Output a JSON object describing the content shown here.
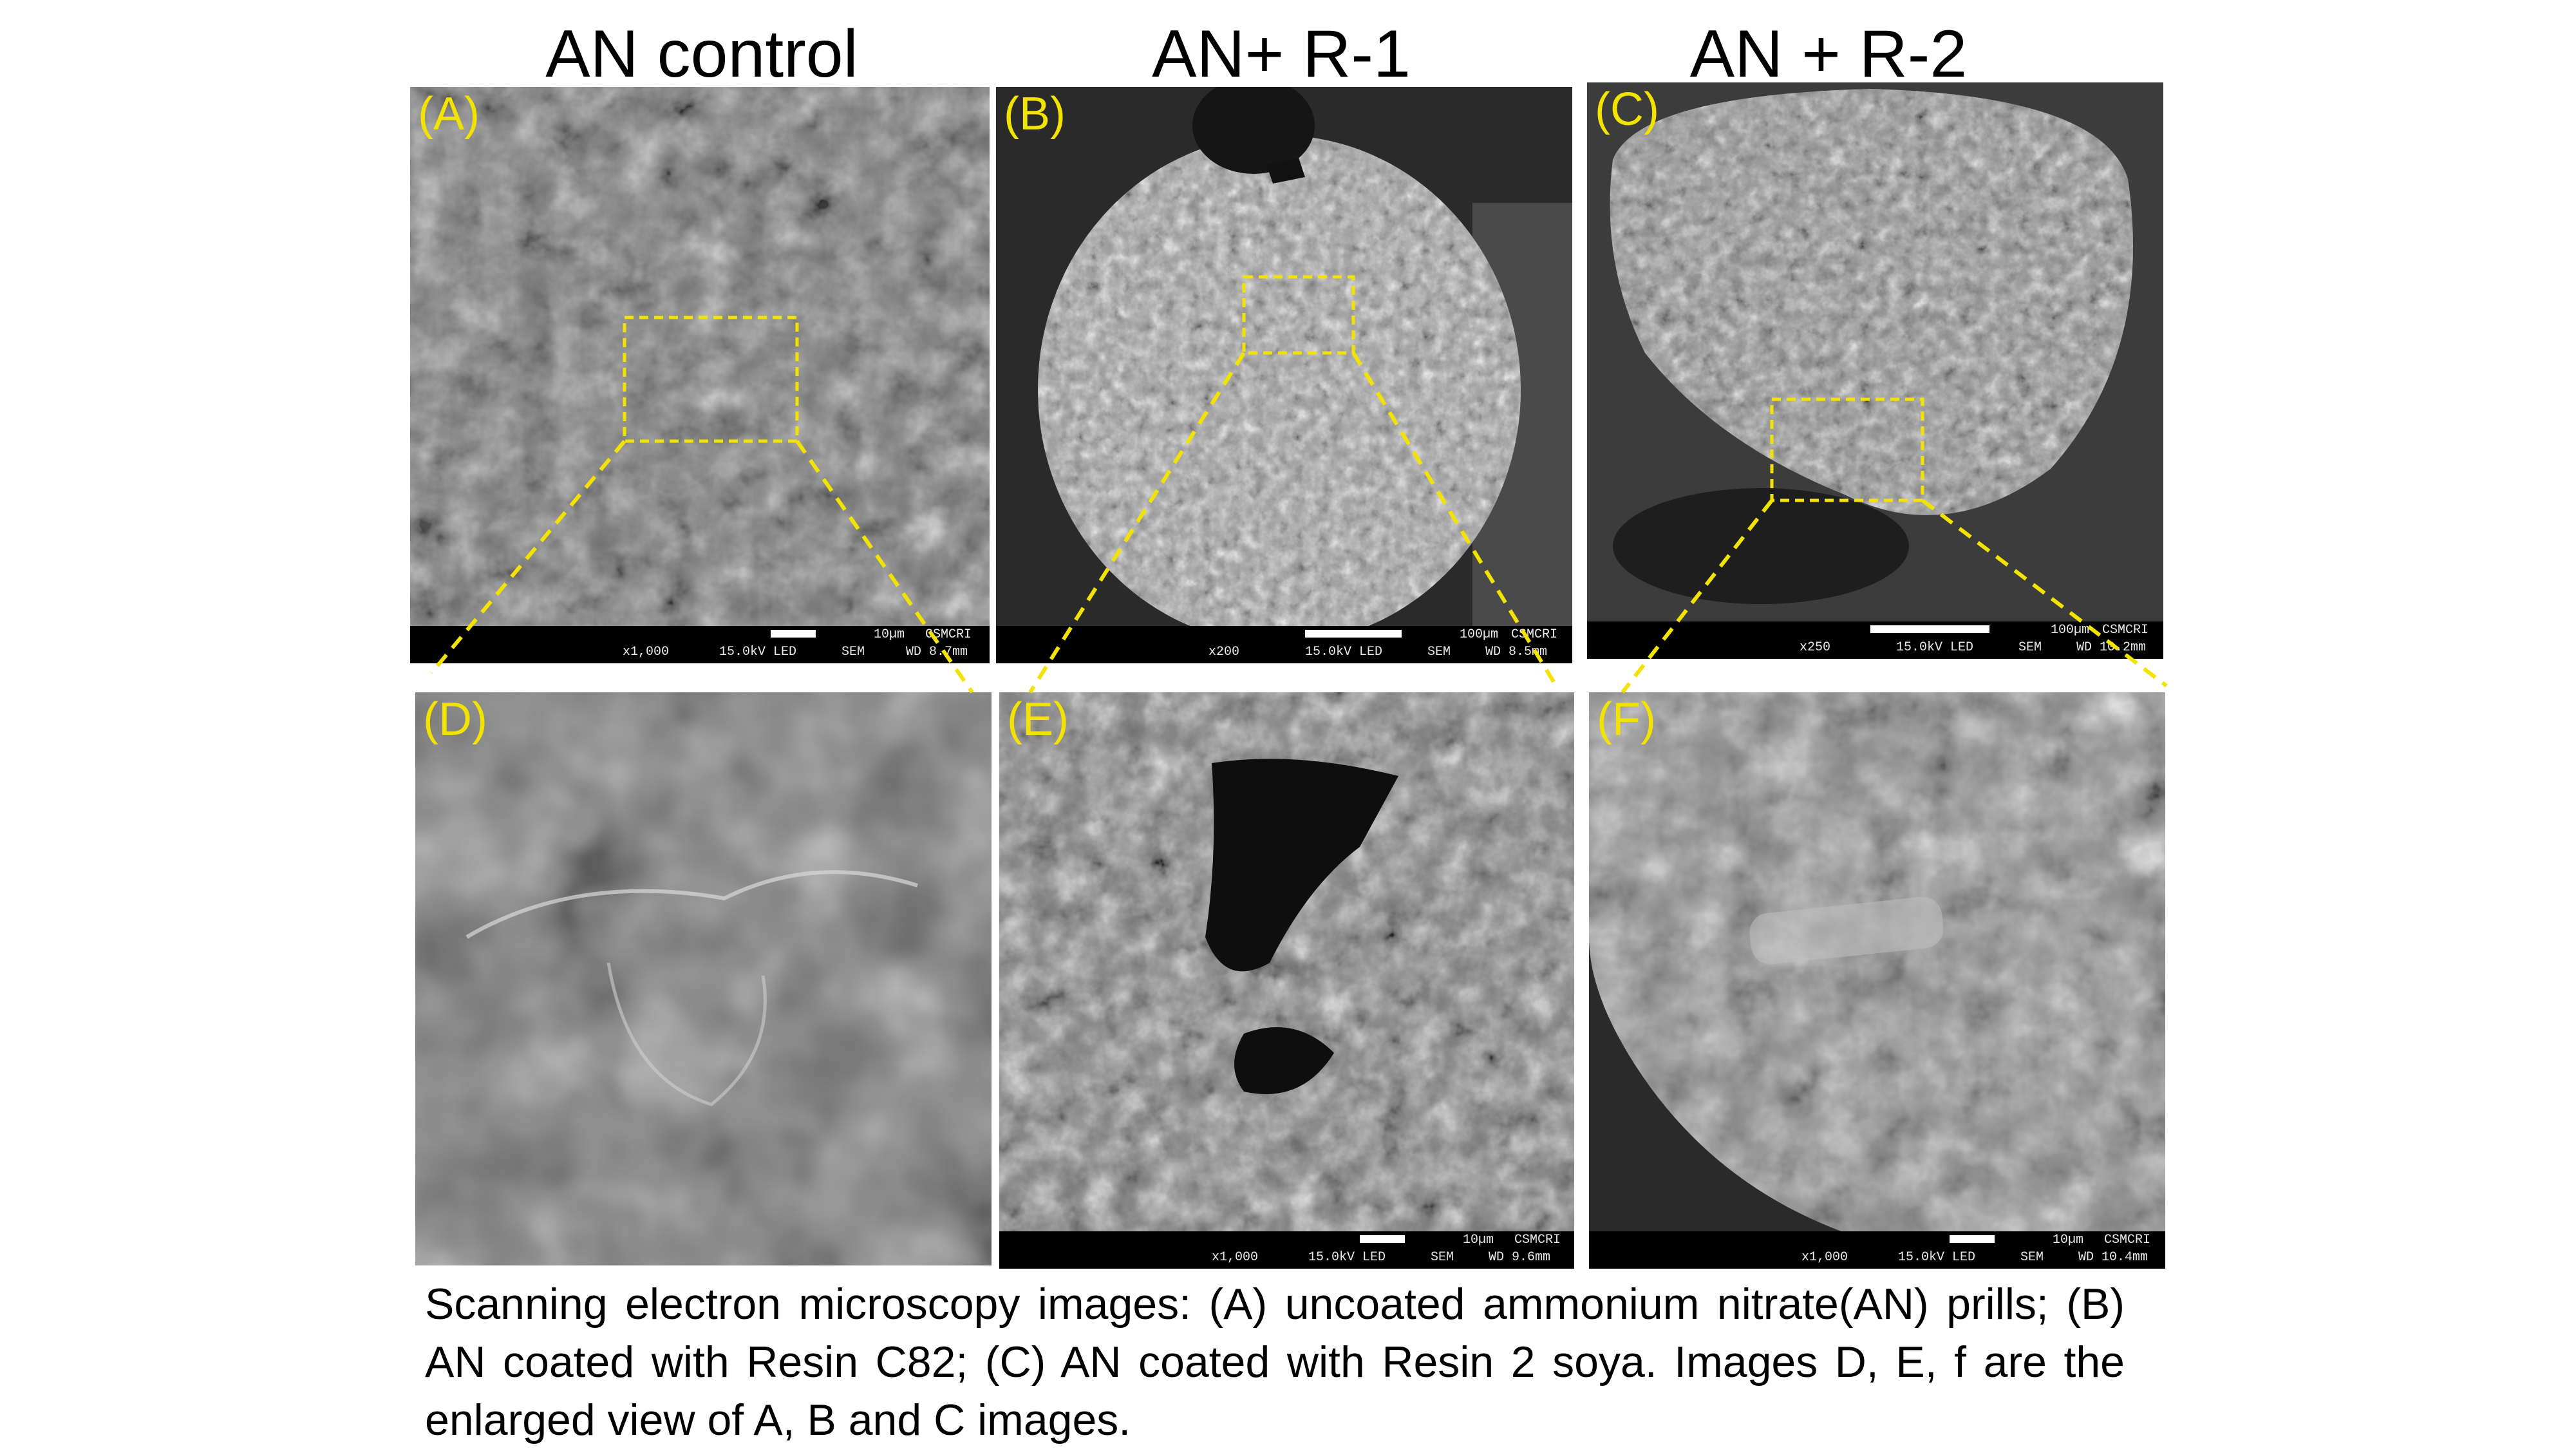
{
  "columns": [
    {
      "title": "AN control"
    },
    {
      "title": "AN+ R-1"
    },
    {
      "title": "AN + R-2"
    }
  ],
  "panels": {
    "A": {
      "label": "(A)",
      "mag": "x1,000",
      "kv": "15.0kV LED",
      "mode": "SEM",
      "wd": "WD 8.7mm",
      "scale": "10µm",
      "org": "CSMCRI"
    },
    "B": {
      "label": "(B)",
      "mag": "x200",
      "kv": "15.0kV LED",
      "mode": "SEM",
      "wd": "WD 8.5mm",
      "scale": "100µm",
      "org": "CSMCRI"
    },
    "C": {
      "label": "(C)",
      "mag": "x250",
      "kv": "15.0kV LED",
      "mode": "SEM",
      "wd": "WD 10.2mm",
      "scale": "100µm",
      "org": "CSMCRI"
    },
    "D": {
      "label": "(D)"
    },
    "E": {
      "label": "(E)",
      "mag": "x1,000",
      "kv": "15.0kV LED",
      "mode": "SEM",
      "wd": "WD 9.6mm",
      "scale": "10µm",
      "org": "CSMCRI"
    },
    "F": {
      "label": "(F)",
      "mag": "x1,000",
      "kv": "15.0kV LED",
      "mode": "SEM",
      "wd": "WD 10.4mm",
      "scale": "10µm",
      "org": "CSMCRI"
    }
  },
  "caption": "Scanning electron microscopy images:  (A) uncoated ammonium nitrate(AN) prills; (B) AN coated with Resin C82; (C) AN coated with Resin 2 soya. Images D, E, f are the enlarged view of A, B and C images.",
  "colors": {
    "label": "#f2e300",
    "zoom_lines": "#f2e300"
  }
}
